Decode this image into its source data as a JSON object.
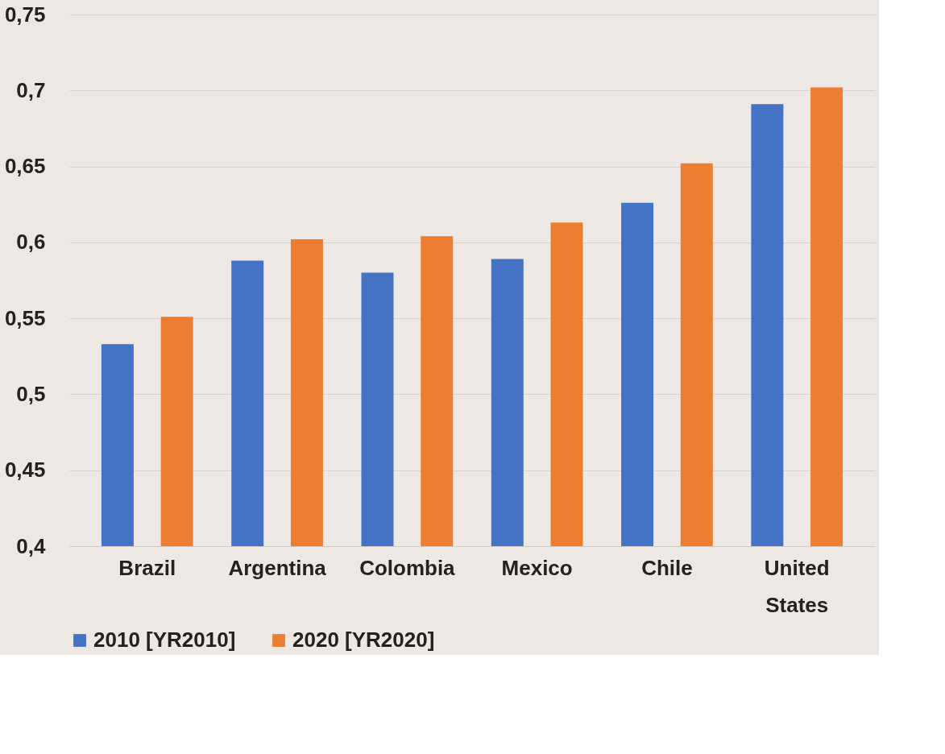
{
  "chart_data": {
    "type": "bar",
    "categories": [
      "Brazil",
      "Argentina",
      "Colombia",
      "Mexico",
      "Chile",
      "United States"
    ],
    "series": [
      {
        "name": "2010 [YR2010]",
        "color": "#4472c4",
        "values": [
          0.533,
          0.588,
          0.58,
          0.589,
          0.626,
          0.691
        ]
      },
      {
        "name": "2020 [YR2020]",
        "color": "#ed7d31",
        "values": [
          0.551,
          0.602,
          0.604,
          0.613,
          0.652,
          0.702
        ]
      }
    ],
    "ylim": [
      0.4,
      0.75
    ],
    "yticks": [
      {
        "value": 0.4,
        "label": "0,4"
      },
      {
        "value": 0.45,
        "label": "0,45"
      },
      {
        "value": 0.5,
        "label": "0,5"
      },
      {
        "value": 0.55,
        "label": "0,55"
      },
      {
        "value": 0.6,
        "label": "0,6"
      },
      {
        "value": 0.65,
        "label": "0,65"
      },
      {
        "value": 0.7,
        "label": "0,7"
      },
      {
        "value": 0.75,
        "label": "0,75"
      }
    ],
    "grid": "y",
    "legend": "bottom"
  }
}
